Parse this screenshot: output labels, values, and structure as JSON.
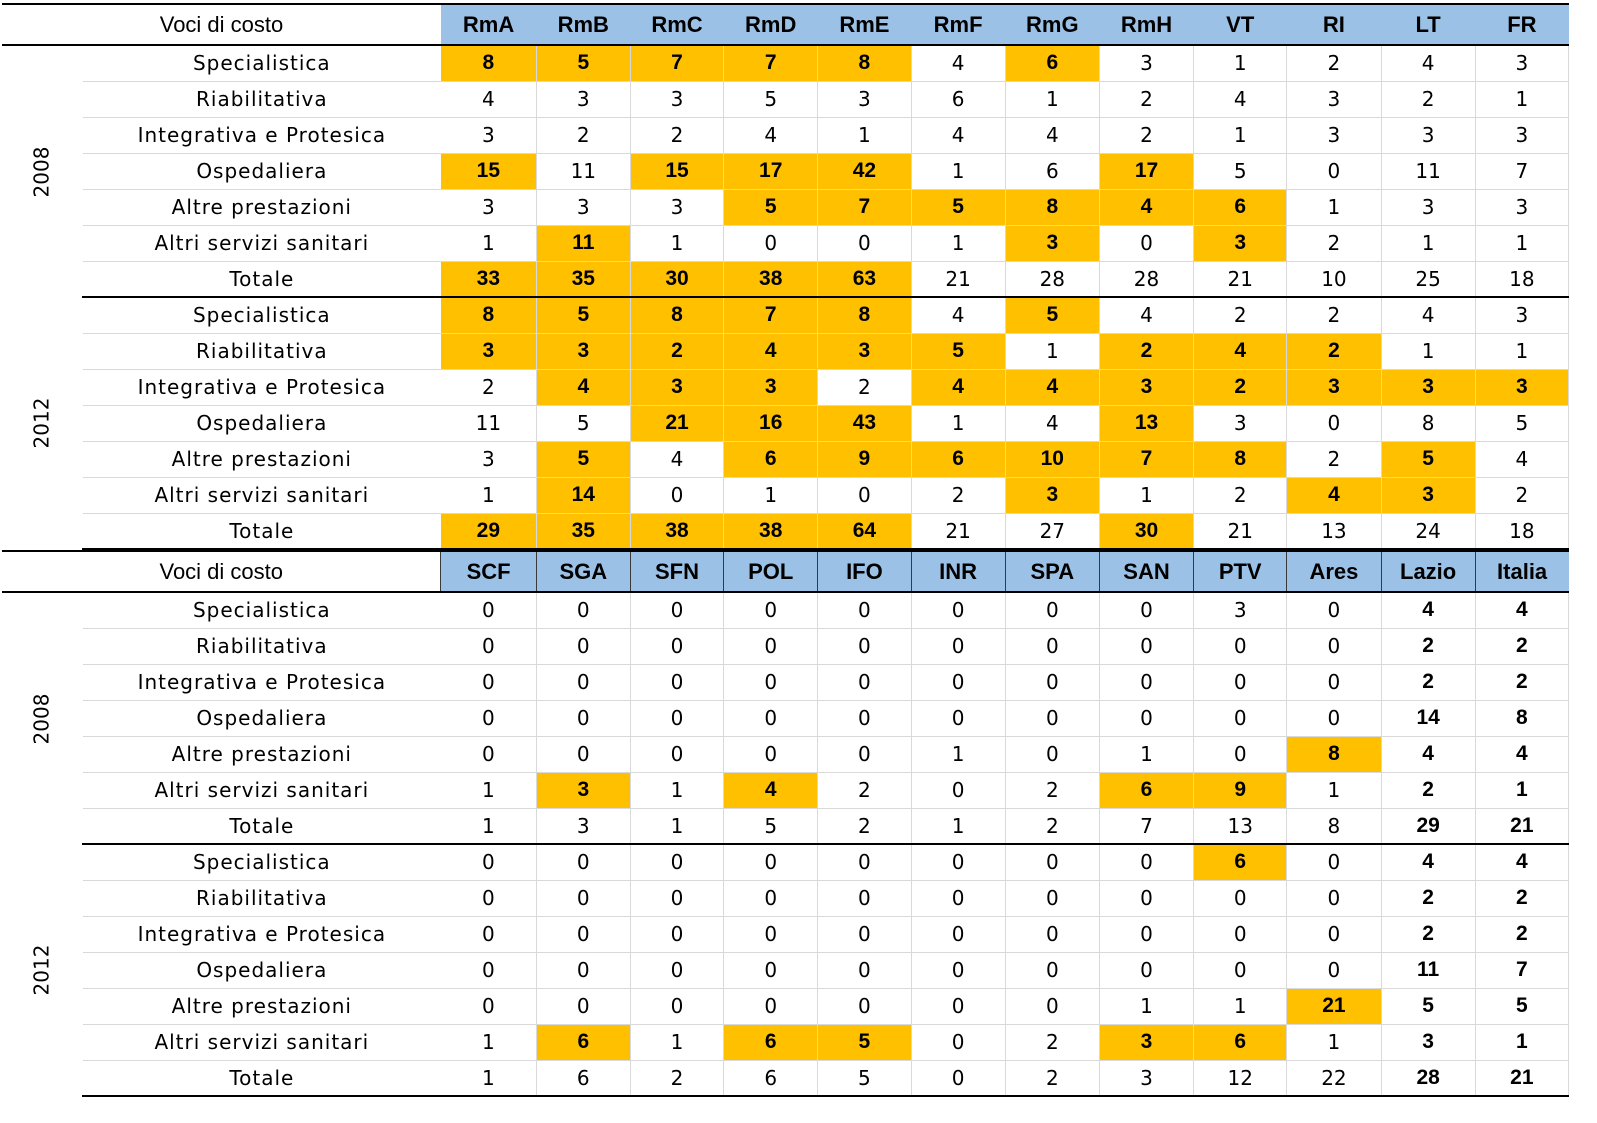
{
  "row_header_label": "Voci di costo",
  "row_labels": [
    "Specialistica",
    "Riabilitativa",
    "Integrativa e Protesica",
    "Ospedaliera",
    "Altre prestazioni",
    "Altri servizi sanitari",
    "Totale"
  ],
  "colors": {
    "header_blue": "#9bc2e6",
    "highlight_orange": "#ffc000"
  },
  "sections": [
    {
      "columns": [
        "RmA",
        "RmB",
        "RmC",
        "RmD",
        "RmE",
        "RmF",
        "RmG",
        "RmH",
        "VT",
        "RI",
        "LT",
        "FR"
      ],
      "bold_columns": [],
      "years": [
        {
          "year": "2008",
          "rows": [
            {
              "values": [
                "8",
                "5",
                "7",
                "7",
                "8",
                "4",
                "6",
                "3",
                "1",
                "2",
                "4",
                "3"
              ],
              "highlight": [
                0,
                1,
                2,
                3,
                4,
                6
              ]
            },
            {
              "values": [
                "4",
                "3",
                "3",
                "5",
                "3",
                "6",
                "1",
                "2",
                "4",
                "3",
                "2",
                "1"
              ],
              "highlight": []
            },
            {
              "values": [
                "3",
                "2",
                "2",
                "4",
                "1",
                "4",
                "4",
                "2",
                "1",
                "3",
                "3",
                "3"
              ],
              "highlight": []
            },
            {
              "values": [
                "15",
                "11",
                "15",
                "17",
                "42",
                "1",
                "6",
                "17",
                "5",
                "0",
                "11",
                "7"
              ],
              "highlight": [
                0,
                2,
                3,
                4,
                7
              ]
            },
            {
              "values": [
                "3",
                "3",
                "3",
                "5",
                "7",
                "5",
                "8",
                "4",
                "6",
                "1",
                "3",
                "3"
              ],
              "highlight": [
                3,
                4,
                5,
                6,
                7,
                8
              ]
            },
            {
              "values": [
                "1",
                "11",
                "1",
                "0",
                "0",
                "1",
                "3",
                "0",
                "3",
                "2",
                "1",
                "1"
              ],
              "highlight": [
                1,
                6,
                8
              ]
            },
            {
              "values": [
                "33",
                "35",
                "30",
                "38",
                "63",
                "21",
                "28",
                "28",
                "21",
                "10",
                "25",
                "18"
              ],
              "highlight": [
                0,
                1,
                2,
                3,
                4
              ]
            }
          ]
        },
        {
          "year": "2012",
          "rows": [
            {
              "values": [
                "8",
                "5",
                "8",
                "7",
                "8",
                "4",
                "5",
                "4",
                "2",
                "2",
                "4",
                "3"
              ],
              "highlight": [
                0,
                1,
                2,
                3,
                4,
                6
              ]
            },
            {
              "values": [
                "3",
                "3",
                "2",
                "4",
                "3",
                "5",
                "1",
                "2",
                "4",
                "2",
                "1",
                "1"
              ],
              "highlight": [
                0,
                1,
                2,
                3,
                4,
                5,
                7,
                8,
                9
              ]
            },
            {
              "values": [
                "2",
                "4",
                "3",
                "3",
                "2",
                "4",
                "4",
                "3",
                "2",
                "3",
                "3",
                "3"
              ],
              "highlight": [
                1,
                2,
                3,
                5,
                6,
                7,
                8,
                9,
                10,
                11
              ]
            },
            {
              "values": [
                "11",
                "5",
                "21",
                "16",
                "43",
                "1",
                "4",
                "13",
                "3",
                "0",
                "8",
                "5"
              ],
              "highlight": [
                2,
                3,
                4,
                7
              ]
            },
            {
              "values": [
                "3",
                "5",
                "4",
                "6",
                "9",
                "6",
                "10",
                "7",
                "8",
                "2",
                "5",
                "4"
              ],
              "highlight": [
                1,
                3,
                4,
                5,
                6,
                7,
                8,
                10
              ]
            },
            {
              "values": [
                "1",
                "14",
                "0",
                "1",
                "0",
                "2",
                "3",
                "1",
                "2",
                "4",
                "3",
                "2"
              ],
              "highlight": [
                1,
                6,
                9,
                10
              ]
            },
            {
              "values": [
                "29",
                "35",
                "38",
                "38",
                "64",
                "21",
                "27",
                "30",
                "21",
                "13",
                "24",
                "18"
              ],
              "highlight": [
                0,
                1,
                2,
                3,
                4,
                7
              ]
            }
          ]
        }
      ]
    },
    {
      "columns": [
        "SCF",
        "SGA",
        "SFN",
        "POL",
        "IFO",
        "INR",
        "SPA",
        "SAN",
        "PTV",
        "Ares",
        "Lazio",
        "Italia"
      ],
      "bold_columns": [
        10,
        11
      ],
      "years": [
        {
          "year": "2008",
          "rows": [
            {
              "values": [
                "0",
                "0",
                "0",
                "0",
                "0",
                "0",
                "0",
                "0",
                "3",
                "0",
                "4",
                "4"
              ],
              "highlight": []
            },
            {
              "values": [
                "0",
                "0",
                "0",
                "0",
                "0",
                "0",
                "0",
                "0",
                "0",
                "0",
                "2",
                "2"
              ],
              "highlight": []
            },
            {
              "values": [
                "0",
                "0",
                "0",
                "0",
                "0",
                "0",
                "0",
                "0",
                "0",
                "0",
                "2",
                "2"
              ],
              "highlight": []
            },
            {
              "values": [
                "0",
                "0",
                "0",
                "0",
                "0",
                "0",
                "0",
                "0",
                "0",
                "0",
                "14",
                "8"
              ],
              "highlight": []
            },
            {
              "values": [
                "0",
                "0",
                "0",
                "0",
                "0",
                "1",
                "0",
                "1",
                "0",
                "8",
                "4",
                "4"
              ],
              "highlight": [
                9
              ]
            },
            {
              "values": [
                "1",
                "3",
                "1",
                "4",
                "2",
                "0",
                "2",
                "6",
                "9",
                "1",
                "2",
                "1"
              ],
              "highlight": [
                1,
                3,
                7,
                8
              ]
            },
            {
              "values": [
                "1",
                "3",
                "1",
                "5",
                "2",
                "1",
                "2",
                "7",
                "13",
                "8",
                "29",
                "21"
              ],
              "highlight": []
            }
          ]
        },
        {
          "year": "2012",
          "rows": [
            {
              "values": [
                "0",
                "0",
                "0",
                "0",
                "0",
                "0",
                "0",
                "0",
                "6",
                "0",
                "4",
                "4"
              ],
              "highlight": [
                8
              ]
            },
            {
              "values": [
                "0",
                "0",
                "0",
                "0",
                "0",
                "0",
                "0",
                "0",
                "0",
                "0",
                "2",
                "2"
              ],
              "highlight": []
            },
            {
              "values": [
                "0",
                "0",
                "0",
                "0",
                "0",
                "0",
                "0",
                "0",
                "0",
                "0",
                "2",
                "2"
              ],
              "highlight": []
            },
            {
              "values": [
                "0",
                "0",
                "0",
                "0",
                "0",
                "0",
                "0",
                "0",
                "0",
                "0",
                "11",
                "7"
              ],
              "highlight": []
            },
            {
              "values": [
                "0",
                "0",
                "0",
                "0",
                "0",
                "0",
                "0",
                "1",
                "1",
                "21",
                "5",
                "5"
              ],
              "highlight": [
                9
              ]
            },
            {
              "values": [
                "1",
                "6",
                "1",
                "6",
                "5",
                "0",
                "2",
                "3",
                "6",
                "1",
                "3",
                "1"
              ],
              "highlight": [
                1,
                3,
                4,
                7,
                8
              ]
            },
            {
              "values": [
                "1",
                "6",
                "2",
                "6",
                "5",
                "0",
                "2",
                "3",
                "12",
                "22",
                "28",
                "21"
              ],
              "highlight": []
            }
          ]
        }
      ]
    }
  ]
}
